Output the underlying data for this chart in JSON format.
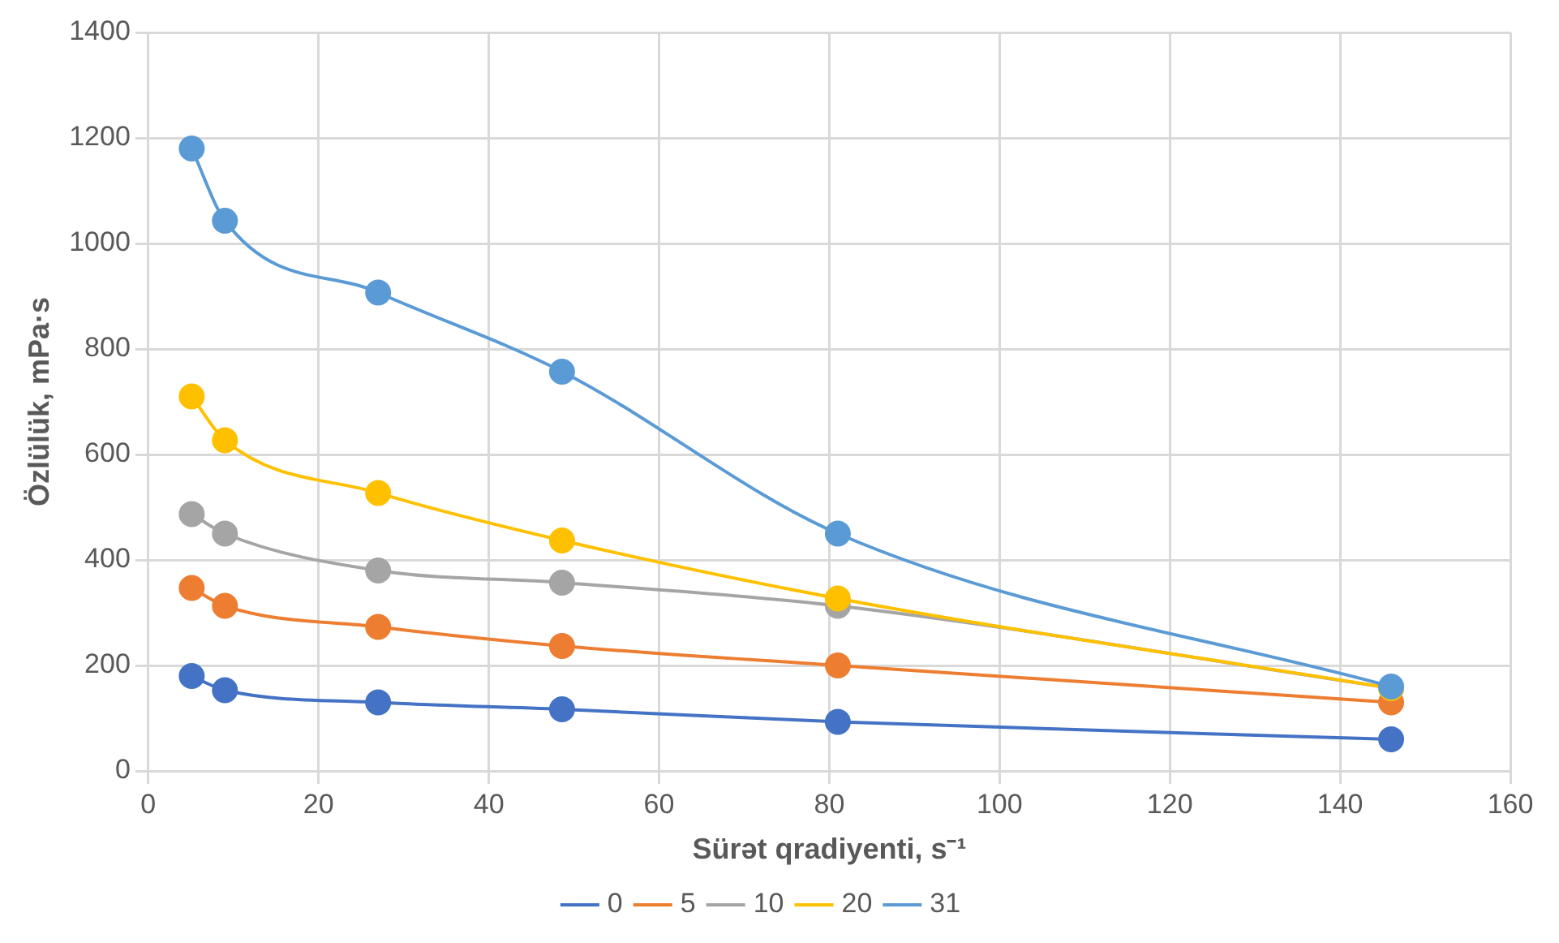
{
  "chart_data": {
    "type": "line",
    "xlabel": "Sürət qradiyenti, s⁻¹",
    "ylabel": "Özlülük, mPa·s",
    "x": [
      5.1,
      9,
      27,
      48.6,
      81,
      146
    ],
    "series": [
      {
        "name": "0",
        "color": "#4472c4",
        "values": [
          180,
          153,
          130,
          117,
          93,
          60
        ]
      },
      {
        "name": "5",
        "color": "#ed7d31",
        "values": [
          347,
          313,
          273,
          237,
          200,
          130
        ]
      },
      {
        "name": "10",
        "color": "#a5a5a5",
        "values": [
          487,
          450,
          380,
          357,
          313,
          157
        ]
      },
      {
        "name": "20",
        "color": "#ffc000",
        "values": [
          710,
          627,
          527,
          437,
          327,
          157
        ]
      },
      {
        "name": "31",
        "color": "#5b9bd5",
        "values": [
          1180,
          1043,
          907,
          757,
          450,
          160
        ]
      }
    ],
    "xlim": [
      0,
      160
    ],
    "xticks": [
      0,
      20,
      40,
      60,
      80,
      100,
      120,
      140,
      160
    ],
    "ylim": [
      0,
      1400
    ],
    "yticks": [
      0,
      200,
      400,
      600,
      800,
      1000,
      1200,
      1400
    ],
    "grid": true,
    "legend": "bottom",
    "marker": "circle",
    "line_style": "solid"
  }
}
